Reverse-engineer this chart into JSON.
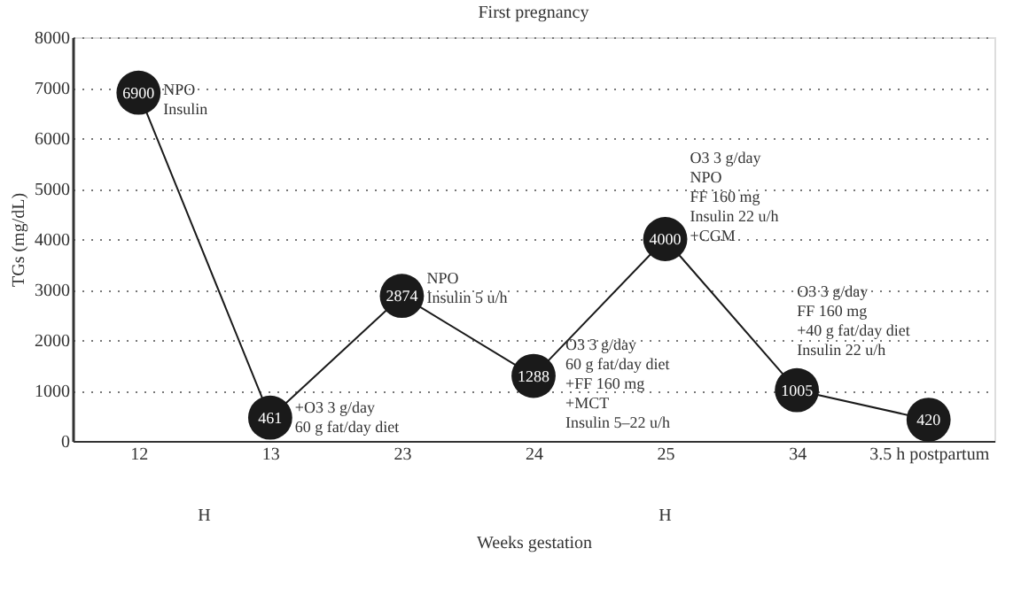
{
  "chart_data": {
    "type": "line",
    "title": "First pregnancy",
    "xlabel": "Weeks gestation",
    "ylabel": "TGs (mg/dL)",
    "categories": [
      "12",
      "13",
      "23",
      "24",
      "25",
      "34",
      "3.5 h postpartum"
    ],
    "series": [
      {
        "color": "#1a1a1a",
        "values": [
          6900,
          461,
          2874,
          1288,
          4000,
          1005,
          420
        ]
      }
    ],
    "ylim": [
      0,
      8000
    ],
    "yticks": [
      0,
      1000,
      2000,
      3000,
      4000,
      5000,
      6000,
      7000,
      8000
    ],
    "grid": "y",
    "marker": "circle",
    "line_style": "solid",
    "data_labels": true,
    "annotations": [
      {
        "text": "NPO\nInsulin",
        "x": "12",
        "y": 6900
      },
      {
        "text": "+O3 3 g/day\n60 g fat/day diet",
        "x": "13",
        "y": 461
      },
      {
        "text": "NPO\nInsulin 5 u/h",
        "x": "23",
        "y": 2874
      },
      {
        "text": "O3 3 g/day\n60 g fat/day diet\n+FF 160 mg\n+MCT\nInsulin 5–22 u/h",
        "x": "24",
        "y": 1288
      },
      {
        "text": "O3 3 g/day\nNPO\nFF 160 mg\nInsulin 22 u/h\n+CGM",
        "x": "25",
        "y": 4000
      },
      {
        "text": "O3 3 g/day\nFF 160 mg\n+40 g fat/day diet\nInsulin 22 u/h",
        "x": "34",
        "y": 1005
      },
      "H",
      "H"
    ]
  }
}
